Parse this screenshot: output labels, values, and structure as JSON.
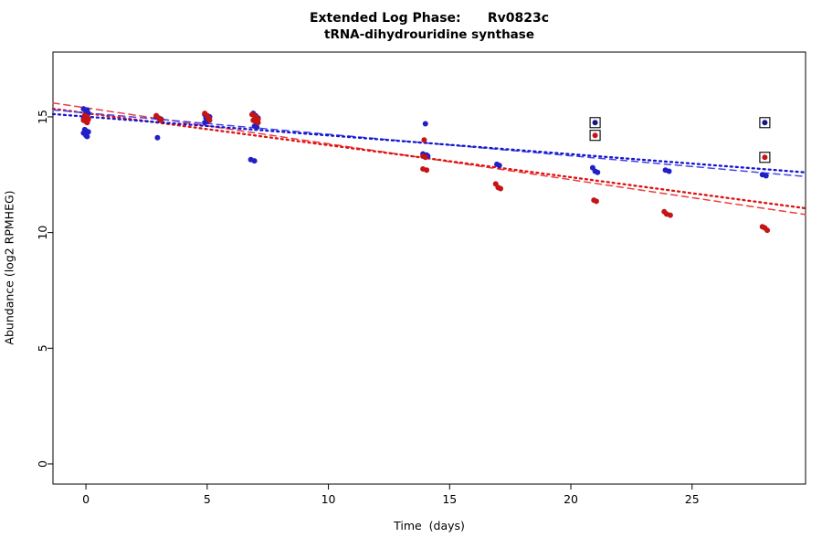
{
  "chart_data": {
    "type": "scatter",
    "title": "Extended Log Phase:      Rv0823c",
    "subtitle": "tRNA-dihydrouridine synthase",
    "xlabel": "Time  (days)",
    "ylabel": "Abundance  (log2 RPMHEG)",
    "xlim": [
      -1.36,
      29.68
    ],
    "ylim": [
      -0.87,
      17.8
    ],
    "xticks": [
      0,
      5,
      10,
      15,
      20,
      25
    ],
    "yticks": [
      0,
      5,
      10,
      15
    ],
    "grid": false,
    "legend": "none",
    "series": [
      {
        "name": "blue-replicates",
        "color": "#2020c8",
        "points": [
          [
            -0.1,
            15.35
          ],
          [
            0.05,
            15.3
          ],
          [
            0,
            15.2
          ],
          [
            0.1,
            15.15
          ],
          [
            -0.05,
            15.05
          ],
          [
            0,
            15.0
          ],
          [
            0.05,
            14.95
          ],
          [
            -0.1,
            14.9
          ],
          [
            0,
            14.85
          ],
          [
            0.05,
            14.8
          ],
          [
            -0.05,
            14.45
          ],
          [
            0,
            14.4
          ],
          [
            0.1,
            14.35
          ],
          [
            -0.1,
            14.3
          ],
          [
            0,
            14.2
          ],
          [
            0.05,
            14.15
          ],
          [
            2.9,
            15.0
          ],
          [
            3.0,
            14.95
          ],
          [
            3.1,
            14.9
          ],
          [
            2.95,
            14.1
          ],
          [
            4.9,
            15.1
          ],
          [
            5.0,
            15.05
          ],
          [
            5.1,
            15.0
          ],
          [
            4.95,
            14.95
          ],
          [
            5.05,
            14.9
          ],
          [
            5.0,
            14.8
          ],
          [
            4.9,
            14.75
          ],
          [
            6.9,
            15.15
          ],
          [
            7.0,
            15.05
          ],
          [
            7.1,
            14.95
          ],
          [
            6.95,
            14.6
          ],
          [
            7.05,
            14.55
          ],
          [
            6.8,
            13.15
          ],
          [
            6.95,
            13.1
          ],
          [
            14.0,
            14.7
          ],
          [
            13.9,
            13.4
          ],
          [
            14.05,
            13.35
          ],
          [
            14.1,
            13.3
          ],
          [
            16.95,
            12.95
          ],
          [
            17.05,
            12.9
          ],
          [
            20.9,
            12.8
          ],
          [
            21.0,
            12.65
          ],
          [
            21.1,
            12.6
          ],
          [
            23.9,
            12.7
          ],
          [
            24.05,
            12.65
          ],
          [
            27.9,
            12.5
          ],
          [
            28.05,
            12.45
          ]
        ]
      },
      {
        "name": "red-replicates",
        "color": "#c41414",
        "points": [
          [
            -0.05,
            15.05
          ],
          [
            0.05,
            15.0
          ],
          [
            0,
            14.95
          ],
          [
            0.1,
            14.9
          ],
          [
            -0.1,
            14.85
          ],
          [
            0,
            14.8
          ],
          [
            0.05,
            14.75
          ],
          [
            2.9,
            15.05
          ],
          [
            3.0,
            14.95
          ],
          [
            3.05,
            14.9
          ],
          [
            3.1,
            14.85
          ],
          [
            4.9,
            15.15
          ],
          [
            5.0,
            15.05
          ],
          [
            5.05,
            14.95
          ],
          [
            5.1,
            14.85
          ],
          [
            6.85,
            15.1
          ],
          [
            6.95,
            15.05
          ],
          [
            7.0,
            15.0
          ],
          [
            7.05,
            14.95
          ],
          [
            7.1,
            14.9
          ],
          [
            6.9,
            14.85
          ],
          [
            7.0,
            14.8
          ],
          [
            7.1,
            14.75
          ],
          [
            13.95,
            14.0
          ],
          [
            13.9,
            13.3
          ],
          [
            14.0,
            13.25
          ],
          [
            13.9,
            12.75
          ],
          [
            14.05,
            12.7
          ],
          [
            16.9,
            12.1
          ],
          [
            17.0,
            11.95
          ],
          [
            17.1,
            11.9
          ],
          [
            20.95,
            11.4
          ],
          [
            21.05,
            11.35
          ],
          [
            23.85,
            10.9
          ],
          [
            23.95,
            10.8
          ],
          [
            24.1,
            10.75
          ],
          [
            27.9,
            10.25
          ],
          [
            28.0,
            10.2
          ],
          [
            28.1,
            10.1
          ]
        ]
      }
    ],
    "flagged_points": [
      {
        "x": 21,
        "y": 14.75,
        "color": "#14148c"
      },
      {
        "x": 21,
        "y": 14.2,
        "color": "#c41414"
      },
      {
        "x": 28,
        "y": 14.75,
        "color": "#14148c"
      },
      {
        "x": 28,
        "y": 13.25,
        "color": "#c41414"
      }
    ],
    "trend_lines": [
      {
        "name": "red-dashed-fit",
        "color": "#ee3b3b",
        "style": "dashed",
        "width": 1.5,
        "from": [
          -1.36,
          15.6
        ],
        "to": [
          29.68,
          10.78
        ]
      },
      {
        "name": "red-dotted-fit",
        "color": "#dd1111",
        "style": "dotted",
        "width": 2.3,
        "from": [
          -1.36,
          15.35
        ],
        "to": [
          29.68,
          11.05
        ]
      },
      {
        "name": "blue-dashed-fit",
        "color": "#4444ee",
        "style": "dashed",
        "width": 1.5,
        "from": [
          -1.36,
          15.3
        ],
        "to": [
          29.68,
          12.42
        ]
      },
      {
        "name": "blue-dotted-fit",
        "color": "#1515cc",
        "style": "dotted",
        "width": 2.3,
        "from": [
          -1.36,
          15.12
        ],
        "to": [
          29.68,
          12.6
        ]
      }
    ]
  }
}
